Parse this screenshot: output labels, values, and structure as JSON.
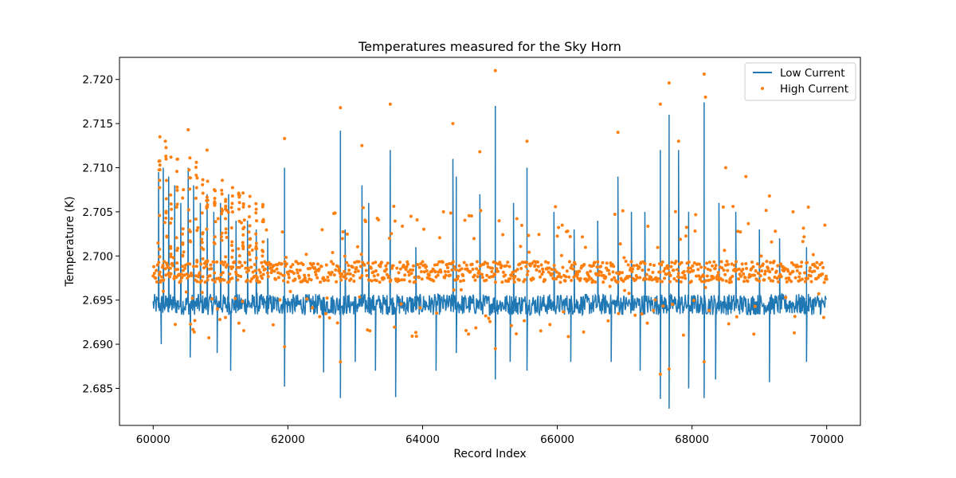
{
  "chart_data": {
    "type": "line+scatter",
    "title": "Temperatures measured for the Sky Horn",
    "xlabel": "Record Index",
    "ylabel": "Temperature (K)",
    "xlim": [
      59500,
      70500
    ],
    "ylim": [
      2.6808,
      2.7225
    ],
    "x_ticks": [
      60000,
      62000,
      64000,
      66000,
      68000,
      70000
    ],
    "x_tick_labels": [
      "60000",
      "62000",
      "64000",
      "66000",
      "68000",
      "70000"
    ],
    "y_ticks": [
      2.685,
      2.69,
      2.695,
      2.7,
      2.705,
      2.71,
      2.715,
      2.72
    ],
    "y_tick_labels": [
      "2.685",
      "2.690",
      "2.695",
      "2.700",
      "2.705",
      "2.710",
      "2.715",
      "2.720"
    ],
    "grid": false,
    "legend_position": "top-right",
    "colors": {
      "low": "#1f77b4",
      "high": "#ff7f0e"
    },
    "x_range": [
      60000,
      70000
    ],
    "series": [
      {
        "name": "Low Current",
        "kind": "line",
        "baseline": 2.6945,
        "noise_amplitude": 0.0012,
        "spikes_up": [
          [
            60080,
            2.7095
          ],
          [
            60150,
            2.71
          ],
          [
            60230,
            2.709
          ],
          [
            60320,
            2.708
          ],
          [
            60410,
            2.706
          ],
          [
            60520,
            2.71
          ],
          [
            60600,
            2.708
          ],
          [
            60700,
            2.706
          ],
          [
            60800,
            2.707
          ],
          [
            60900,
            2.705
          ],
          [
            61000,
            2.706
          ],
          [
            61120,
            2.707
          ],
          [
            61230,
            2.704
          ],
          [
            61400,
            2.704
          ],
          [
            61530,
            2.703
          ],
          [
            61700,
            2.702
          ],
          [
            61950,
            2.71
          ],
          [
            62780,
            2.7142
          ],
          [
            62850,
            2.703
          ],
          [
            63100,
            2.708
          ],
          [
            63200,
            2.706
          ],
          [
            63520,
            2.712
          ],
          [
            63900,
            2.701
          ],
          [
            64450,
            2.711
          ],
          [
            64500,
            2.709
          ],
          [
            64850,
            2.707
          ],
          [
            65080,
            2.717
          ],
          [
            65350,
            2.706
          ],
          [
            65550,
            2.71
          ],
          [
            65950,
            2.705
          ],
          [
            66250,
            2.703
          ],
          [
            66600,
            2.704
          ],
          [
            66900,
            2.709
          ],
          [
            67100,
            2.705
          ],
          [
            67300,
            2.705
          ],
          [
            67530,
            2.712
          ],
          [
            67660,
            2.716
          ],
          [
            67800,
            2.712
          ],
          [
            67950,
            2.705
          ],
          [
            68180,
            2.7174
          ],
          [
            68400,
            2.706
          ],
          [
            68650,
            2.705
          ],
          [
            69000,
            2.703
          ],
          [
            69300,
            2.702
          ],
          [
            69700,
            2.701
          ]
        ],
        "spikes_down": [
          [
            60120,
            2.69
          ],
          [
            60550,
            2.6885
          ],
          [
            60950,
            2.689
          ],
          [
            61150,
            2.687
          ],
          [
            61950,
            2.6852
          ],
          [
            62530,
            2.6868
          ],
          [
            62780,
            2.6839
          ],
          [
            63000,
            2.688
          ],
          [
            63300,
            2.687
          ],
          [
            63600,
            2.684
          ],
          [
            64200,
            2.687
          ],
          [
            64500,
            2.689
          ],
          [
            65080,
            2.686
          ],
          [
            65300,
            2.688
          ],
          [
            65550,
            2.687
          ],
          [
            66200,
            2.688
          ],
          [
            66800,
            2.688
          ],
          [
            67230,
            2.687
          ],
          [
            67530,
            2.6838
          ],
          [
            67660,
            2.6827
          ],
          [
            67950,
            2.685
          ],
          [
            68180,
            2.6839
          ],
          [
            68350,
            2.686
          ],
          [
            69150,
            2.6857
          ],
          [
            69700,
            2.688
          ]
        ]
      },
      {
        "name": "High Current",
        "kind": "scatter",
        "baseline": 2.6982,
        "noise_amplitude": 0.0012,
        "highlights": [
          [
            60100,
            2.7135
          ],
          [
            60180,
            2.713
          ],
          [
            60520,
            2.7143
          ],
          [
            60800,
            2.712
          ],
          [
            61950,
            2.7133
          ],
          [
            62780,
            2.7168
          ],
          [
            63100,
            2.7125
          ],
          [
            63520,
            2.7172
          ],
          [
            64450,
            2.715
          ],
          [
            64850,
            2.7118
          ],
          [
            65080,
            2.721
          ],
          [
            65550,
            2.713
          ],
          [
            66900,
            2.714
          ],
          [
            67530,
            2.7172
          ],
          [
            67660,
            2.7196
          ],
          [
            67800,
            2.713
          ],
          [
            68180,
            2.7206
          ],
          [
            68200,
            2.718
          ],
          [
            68500,
            2.71
          ],
          [
            68800,
            2.709
          ],
          [
            69150,
            2.7068
          ],
          [
            69500,
            2.705
          ],
          [
            60150,
            2.696
          ],
          [
            61950,
            2.6897
          ],
          [
            62780,
            2.688
          ],
          [
            65080,
            2.6895
          ],
          [
            67530,
            2.6866
          ],
          [
            67660,
            2.6872
          ],
          [
            68180,
            2.688
          ]
        ]
      }
    ],
    "legend": [
      "Low Current",
      "High Current"
    ]
  }
}
